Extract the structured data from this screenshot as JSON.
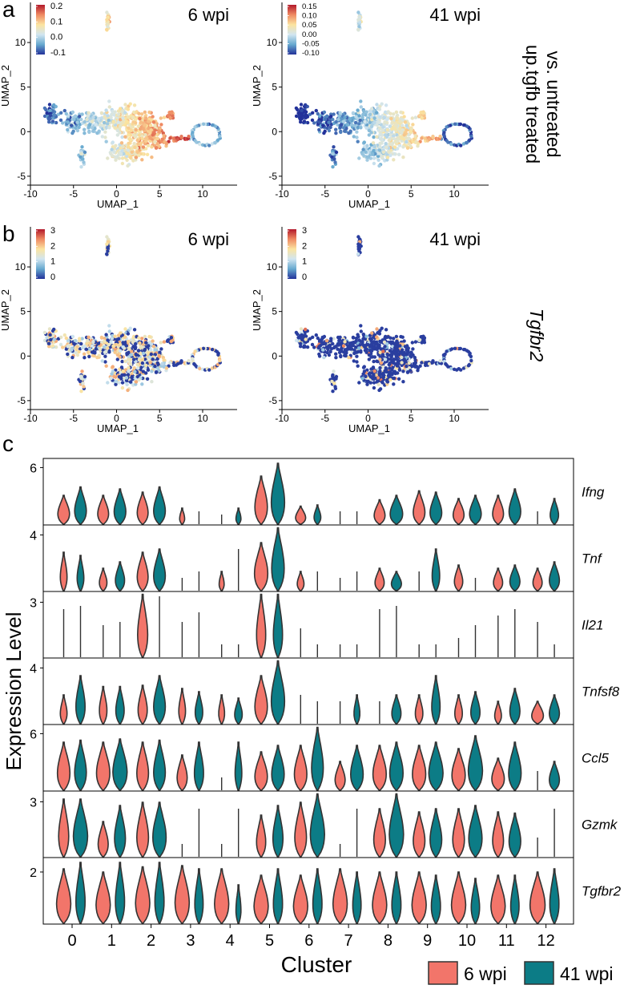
{
  "panel_labels": [
    "a",
    "b",
    "c"
  ],
  "colors": {
    "wpi6": "#F2756A",
    "wpi41": "#0C7C86",
    "dark_blue": "#23329A"
  },
  "umap_panels": [
    {
      "id": "a-left",
      "panel": "a",
      "timepoint": "6 wpi",
      "mode": "score",
      "legend_ticks": [
        "0.2",
        "0.1",
        "0.0",
        "-0.1"
      ],
      "xlabel": "UMAP_1",
      "ylabel": "UMAP_2",
      "xticks": [
        "-10",
        "-5",
        "0",
        "5",
        "10"
      ],
      "yticks": [
        "10",
        "5",
        "0",
        "-5"
      ]
    },
    {
      "id": "a-right",
      "panel": "a",
      "timepoint": "41 wpi",
      "mode": "score",
      "legend_ticks": [
        "0.15",
        "0.10",
        "0.05",
        "0.00",
        "-0.05",
        "-0.10"
      ],
      "xlabel": "UMAP_1",
      "ylabel": "UMAP_2",
      "xticks": [
        "-10",
        "-5",
        "0",
        "5",
        "10"
      ],
      "yticks": [
        "10",
        "5",
        "0",
        "-5"
      ]
    },
    {
      "id": "b-left",
      "panel": "b",
      "timepoint": "6 wpi",
      "mode": "expr_low",
      "legend_ticks": [
        "3",
        "2",
        "1",
        "0"
      ],
      "xlabel": "UMAP_1",
      "ylabel": "UMAP_2",
      "xticks": [
        "-10",
        "-5",
        "0",
        "5",
        "10"
      ],
      "yticks": [
        "10",
        "5",
        "0",
        "-5"
      ]
    },
    {
      "id": "b-right",
      "panel": "b",
      "timepoint": "41 wpi",
      "mode": "expr_zero",
      "legend_ticks": [
        "3",
        "2",
        "1",
        "0"
      ],
      "xlabel": "UMAP_1",
      "ylabel": "UMAP_2",
      "xticks": [
        "-10",
        "-5",
        "0",
        "5",
        "10"
      ],
      "yticks": [
        "10",
        "5",
        "0",
        "-5"
      ]
    }
  ],
  "row_labels": {
    "a_line1": "up.tgfb treated",
    "a_line2": "vs. untreated",
    "b": "Tgfbr2"
  },
  "chart_data": {
    "type": "violin",
    "title": "",
    "xlabel": "Cluster",
    "ylabel": "Expression Level",
    "categories": [
      "0",
      "1",
      "2",
      "3",
      "4",
      "5",
      "6",
      "7",
      "8",
      "9",
      "10",
      "11",
      "12"
    ],
    "legend": [
      "6 wpi",
      "41 wpi"
    ],
    "genes": [
      {
        "name": "Ifng",
        "ytick": "6",
        "ymax": 6.8,
        "ytick_val": 6,
        "max6": [
          0.45,
          0.45,
          0.5,
          0.25,
          0.15,
          0.75,
          0.28,
          0.2,
          0.38,
          0.52,
          0.4,
          0.45,
          0.2
        ],
        "max41": [
          0.58,
          0.55,
          0.58,
          0.2,
          0.25,
          0.95,
          0.3,
          0.2,
          0.45,
          0.5,
          0.45,
          0.55,
          0.4
        ],
        "w6": [
          0.7,
          0.65,
          0.65,
          0.3,
          0.2,
          0.75,
          0.6,
          0.2,
          0.65,
          0.7,
          0.65,
          0.65,
          0.2
        ],
        "w41": [
          0.7,
          0.7,
          0.7,
          0.2,
          0.3,
          0.8,
          0.4,
          0.2,
          0.75,
          0.7,
          0.7,
          0.7,
          0.5
        ]
      },
      {
        "name": "Tnf",
        "ytick": "4",
        "ymax": 4.6,
        "ytick_val": 4,
        "max6": [
          0.6,
          0.35,
          0.6,
          0.2,
          0.3,
          0.75,
          0.3,
          0.2,
          0.35,
          0.3,
          0.4,
          0.35,
          0.35
        ],
        "max41": [
          0.55,
          0.45,
          0.65,
          0.3,
          0.65,
          0.98,
          0.3,
          0.3,
          0.3,
          0.65,
          0.2,
          0.4,
          0.45
        ],
        "w6": [
          0.4,
          0.45,
          0.65,
          0.2,
          0.3,
          0.8,
          0.4,
          0.2,
          0.55,
          0.2,
          0.5,
          0.55,
          0.55
        ],
        "w41": [
          0.4,
          0.55,
          0.7,
          0.2,
          0.2,
          0.75,
          0.2,
          0.2,
          0.6,
          0.45,
          0.2,
          0.6,
          0.6
        ]
      },
      {
        "name": "Il21",
        "ytick": "3",
        "ymax": 3.5,
        "ytick_val": 3,
        "max6": [
          0.75,
          0.5,
          0.98,
          0.55,
          0.2,
          0.98,
          0.45,
          0.2,
          0.75,
          0.2,
          0.3,
          0.65,
          0.55
        ],
        "max41": [
          0.8,
          0.55,
          0.95,
          0.7,
          0.2,
          0.98,
          0.2,
          0.2,
          0.8,
          0.2,
          0.5,
          0.75,
          0.2
        ],
        "w6": [
          0.2,
          0.2,
          0.6,
          0.2,
          0.2,
          0.55,
          0.2,
          0.2,
          0.2,
          0.2,
          0.2,
          0.2,
          0.2
        ],
        "w41": [
          0.2,
          0.2,
          0.2,
          0.2,
          0.2,
          0.55,
          0.2,
          0.2,
          0.2,
          0.2,
          0.2,
          0.2,
          0.2
        ]
      },
      {
        "name": "Tnfsf8",
        "ytick": "4",
        "ymax": 4.6,
        "ytick_val": 4,
        "max6": [
          0.45,
          0.58,
          0.6,
          0.55,
          0.45,
          0.75,
          0.45,
          0.35,
          0.35,
          0.45,
          0.45,
          0.35,
          0.35
        ],
        "max41": [
          0.75,
          0.58,
          0.75,
          0.5,
          0.4,
          0.98,
          0.35,
          0.45,
          0.45,
          0.75,
          0.5,
          0.55,
          0.45
        ],
        "w6": [
          0.4,
          0.45,
          0.55,
          0.4,
          0.35,
          0.75,
          0.2,
          0.2,
          0.2,
          0.45,
          0.45,
          0.4,
          0.7
        ],
        "w41": [
          0.55,
          0.5,
          0.7,
          0.45,
          0.45,
          0.8,
          0.2,
          0.35,
          0.55,
          0.5,
          0.55,
          0.6,
          0.6
        ]
      },
      {
        "name": "Ccl5",
        "ytick": "6",
        "ymax": 6.8,
        "ytick_val": 6,
        "max6": [
          0.75,
          0.75,
          0.75,
          0.55,
          0.2,
          0.6,
          0.7,
          0.45,
          0.7,
          0.7,
          0.65,
          0.5,
          0.3
        ],
        "max41": [
          0.78,
          0.8,
          0.78,
          0.75,
          0.75,
          0.7,
          0.98,
          0.7,
          0.75,
          0.75,
          0.85,
          0.75,
          0.45
        ],
        "w6": [
          0.75,
          0.8,
          0.7,
          0.6,
          0.2,
          0.75,
          0.75,
          0.6,
          0.8,
          0.8,
          0.8,
          0.75,
          0.2
        ],
        "w41": [
          0.7,
          0.85,
          0.7,
          0.55,
          0.4,
          0.75,
          0.7,
          0.75,
          0.8,
          0.85,
          0.85,
          0.75,
          0.6
        ]
      },
      {
        "name": "Gzmk",
        "ytick": "3",
        "ymax": 3.5,
        "ytick_val": 3,
        "max6": [
          0.9,
          0.55,
          0.85,
          0.2,
          0.2,
          0.65,
          0.85,
          0.2,
          0.75,
          0.7,
          0.75,
          0.7,
          0.3
        ],
        "max41": [
          0.9,
          0.8,
          0.85,
          0.75,
          0.75,
          0.8,
          0.98,
          0.75,
          0.98,
          0.75,
          0.8,
          0.68,
          0.75
        ],
        "w6": [
          0.6,
          0.6,
          0.7,
          0.2,
          0.2,
          0.55,
          0.7,
          0.2,
          0.7,
          0.7,
          0.7,
          0.65,
          0.2
        ],
        "w41": [
          0.85,
          0.65,
          0.8,
          0.2,
          0.2,
          0.6,
          0.85,
          0.2,
          0.85,
          0.7,
          0.8,
          0.7,
          0.2
        ]
      },
      {
        "name": "Tgfbr2",
        "ytick": "2",
        "ymax": 2.5,
        "ytick_val": 2,
        "max6": [
          0.85,
          0.8,
          0.88,
          0.9,
          0.85,
          0.75,
          0.75,
          0.85,
          0.8,
          0.8,
          0.8,
          0.75,
          0.8
        ],
        "max41": [
          0.95,
          0.95,
          0.95,
          0.85,
          0.6,
          0.85,
          0.85,
          0.8,
          0.8,
          0.75,
          0.7,
          0.75,
          0.85
        ],
        "w6": [
          0.85,
          0.85,
          0.85,
          0.85,
          0.85,
          0.85,
          0.85,
          0.85,
          0.85,
          0.85,
          0.85,
          0.85,
          0.9
        ],
        "w41": [
          0.55,
          0.55,
          0.55,
          0.5,
          0.3,
          0.55,
          0.55,
          0.5,
          0.55,
          0.55,
          0.5,
          0.5,
          0.55
        ]
      }
    ]
  }
}
